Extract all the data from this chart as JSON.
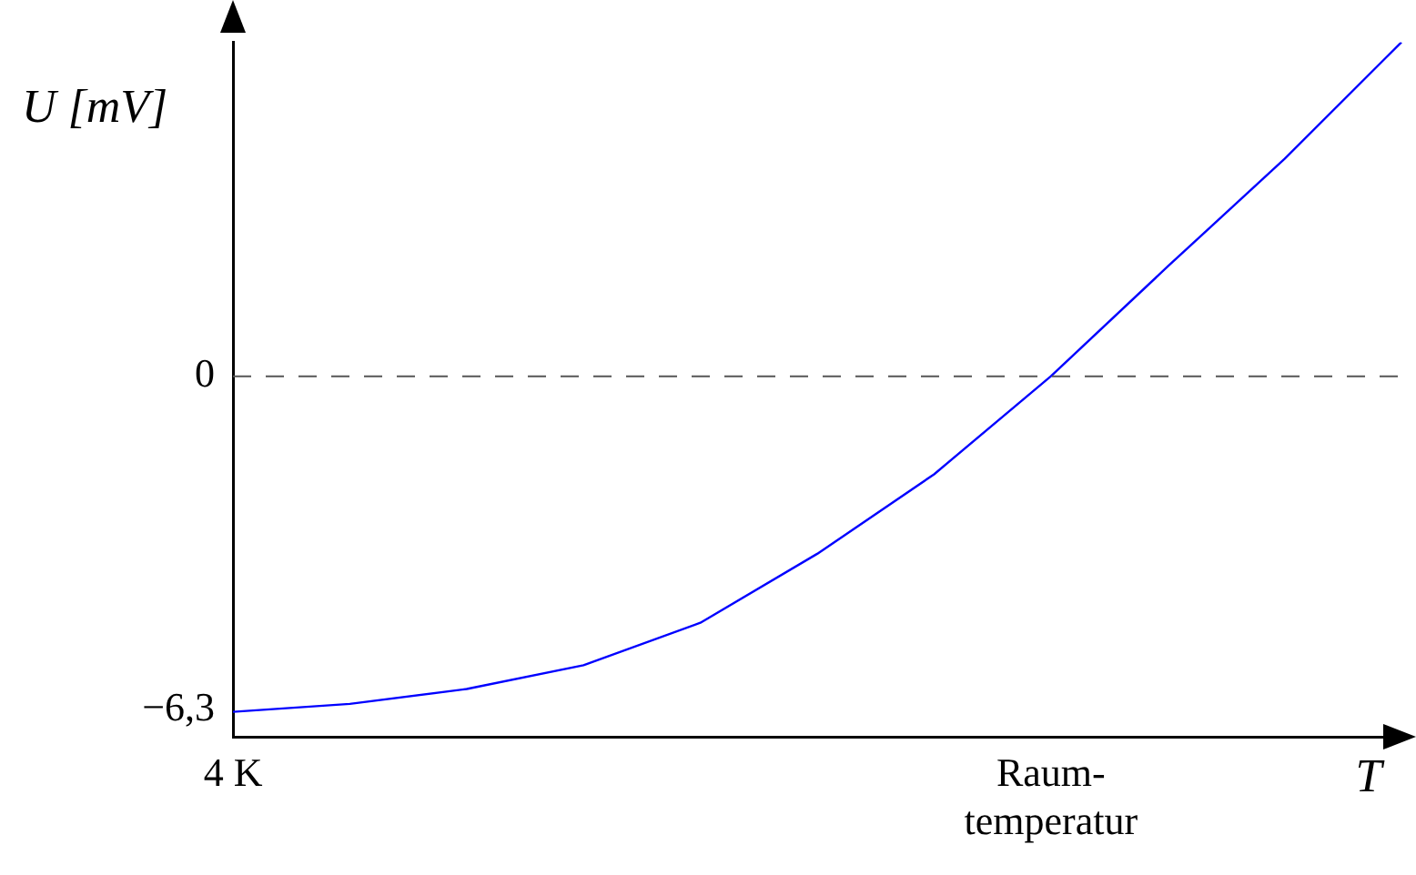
{
  "chart_data": {
    "type": "line",
    "xlabel": "T",
    "ylabel": "U [mV]",
    "categories": [
      "4 K",
      null,
      null,
      null,
      null,
      null,
      null,
      "Raum-\ntemperatur",
      null,
      null,
      null
    ],
    "series": [
      {
        "color": "#0000ff",
        "values": [
          -6.33,
          -6.18,
          -5.9,
          -5.45,
          -4.65,
          -3.35,
          -1.85,
          0,
          2.07,
          4.1,
          6.3
        ]
      }
    ],
    "ylim": [
      -6.8,
      6.3
    ],
    "yticks": [
      {
        "value": -6.3,
        "label": "−6,3"
      },
      0
    ],
    "ref_lines": [
      {
        "axis": "y",
        "value": 0,
        "color": "#555555",
        "line_style": "dashed"
      }
    ],
    "grid": false,
    "legend": false,
    "marker": "none",
    "line_style": "solid"
  }
}
